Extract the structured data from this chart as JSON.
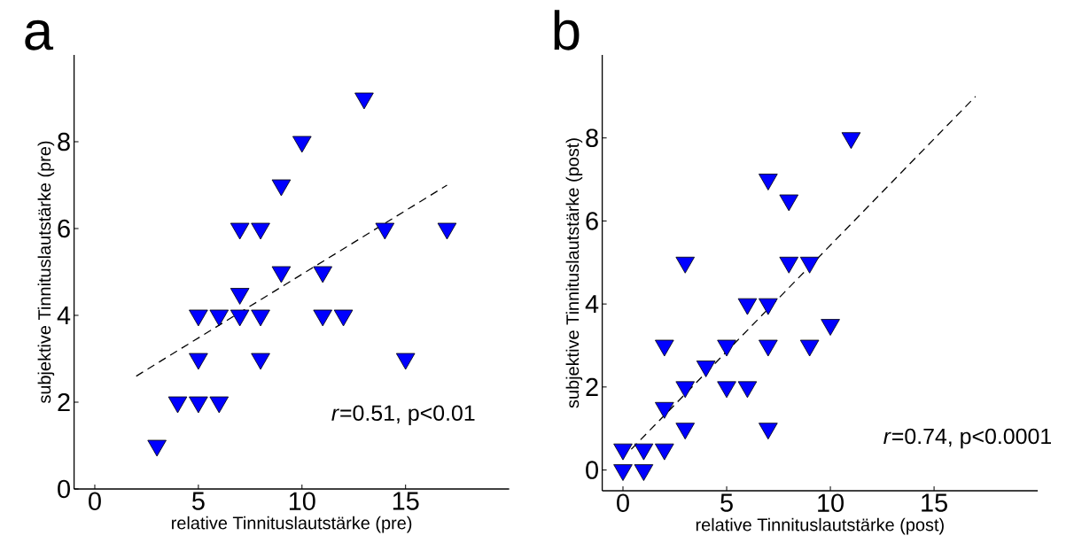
{
  "chart_data": [
    {
      "type": "scatter",
      "title": "a",
      "xlabel": "relative Tinnituslautstärke (pre)",
      "ylabel": "subjektive Tinnituslautstärke (pre)",
      "xlim": [
        -1,
        20
      ],
      "ylim": [
        0,
        10
      ],
      "xticks": [
        0,
        5,
        10,
        15
      ],
      "yticks": [
        0,
        2,
        4,
        6,
        8
      ],
      "marker": "triangle",
      "annotations": [
        "*r*=0.51, p<0.01"
      ],
      "series": [
        {
          "type": "scatter",
          "color": "#0000ff",
          "x": [
            3,
            4,
            5,
            6,
            5,
            8,
            15,
            5,
            6,
            7,
            8,
            11,
            12,
            7,
            9,
            11,
            7,
            8,
            14,
            17,
            9,
            10,
            13
          ],
          "values": [
            1,
            2,
            2,
            2,
            3,
            3,
            3,
            4,
            4,
            4,
            4,
            4,
            4,
            4.5,
            5,
            5,
            6,
            6,
            6,
            6,
            7,
            8,
            9
          ]
        },
        {
          "type": "line",
          "color": "#000000",
          "line_style": "dashed",
          "marker": "none",
          "x": [
            2,
            17
          ],
          "values": [
            2.6,
            7
          ]
        }
      ]
    },
    {
      "type": "scatter",
      "title": "b",
      "xlabel": "relative Tinnituslautstärke (post)",
      "ylabel": "subjektive Tinnituslautstärke (post)",
      "xlim": [
        -1,
        20
      ],
      "ylim": [
        -0.5,
        10
      ],
      "xticks": [
        0,
        5,
        10,
        15
      ],
      "yticks": [
        0,
        2,
        4,
        6,
        8
      ],
      "marker": "triangle",
      "annotations": [
        "*r*=0.74, p<0.0001"
      ],
      "series": [
        {
          "type": "scatter",
          "color": "#0000ff",
          "x": [
            0,
            1,
            0,
            1,
            2,
            3,
            7,
            2,
            3,
            5,
            6,
            4,
            2,
            5,
            7,
            9,
            10,
            6,
            7,
            3,
            8,
            9,
            8,
            7,
            11
          ],
          "values": [
            0,
            0,
            0.5,
            0.5,
            0.5,
            1,
            1,
            1.5,
            2,
            2,
            2,
            2.5,
            3,
            3,
            3,
            3,
            3.5,
            4,
            4,
            5,
            5,
            5,
            6.5,
            7,
            8
          ]
        },
        {
          "type": "line",
          "color": "#000000",
          "line_style": "dashed",
          "marker": "none",
          "x": [
            0.4,
            17
          ],
          "values": [
            0.5,
            9
          ]
        }
      ]
    }
  ]
}
